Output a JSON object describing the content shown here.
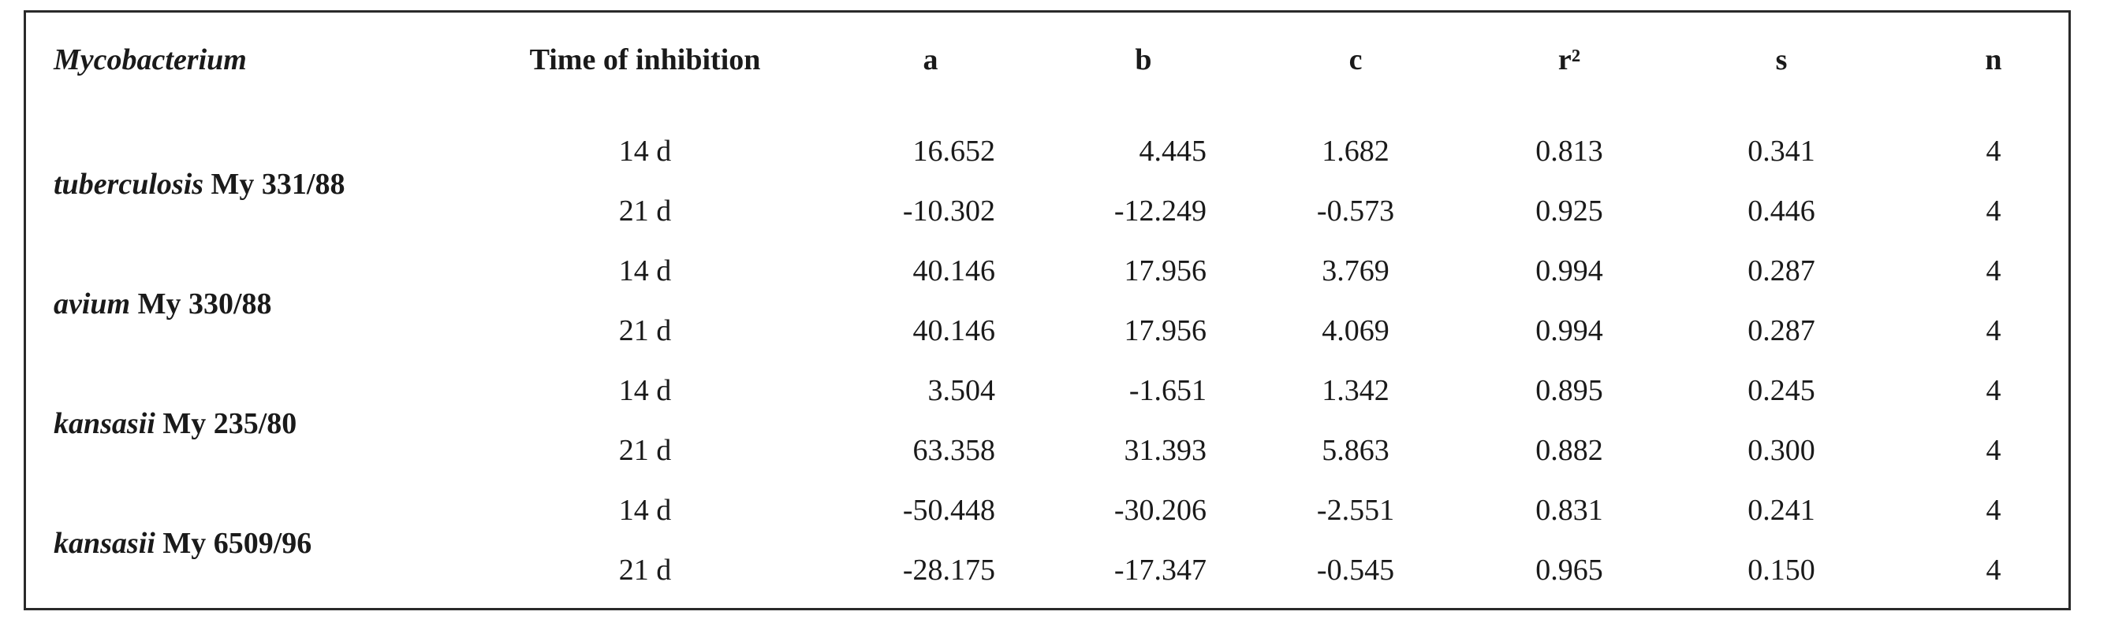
{
  "table": {
    "headers": {
      "organism": "Mycobacterium",
      "time": "Time of inhibition",
      "a": "a",
      "b": "b",
      "c": "c",
      "r2": "r²",
      "s": "s",
      "n": "n"
    },
    "groups": [
      {
        "species": "tuberculosis",
        "strain": " My 331/88",
        "rows": [
          {
            "time": "14 d",
            "a": "16.652",
            "b": "4.445",
            "c": "1.682",
            "r2": "0.813",
            "s": "0.341",
            "n": "4"
          },
          {
            "time": "21 d",
            "a": "-10.302",
            "b": "-12.249",
            "c": "-0.573",
            "r2": "0.925",
            "s": "0.446",
            "n": "4"
          }
        ]
      },
      {
        "species": "avium",
        "strain": " My 330/88",
        "rows": [
          {
            "time": "14 d",
            "a": "40.146",
            "b": "17.956",
            "c": "3.769",
            "r2": "0.994",
            "s": "0.287",
            "n": "4"
          },
          {
            "time": "21 d",
            "a": "40.146",
            "b": "17.956",
            "c": "4.069",
            "r2": "0.994",
            "s": "0.287",
            "n": "4"
          }
        ]
      },
      {
        "species": "kansasii",
        "strain": " My 235/80",
        "rows": [
          {
            "time": "14 d",
            "a": "3.504",
            "b": "-1.651",
            "c": "1.342",
            "r2": "0.895",
            "s": "0.245",
            "n": "4"
          },
          {
            "time": "21 d",
            "a": "63.358",
            "b": "31.393",
            "c": "5.863",
            "r2": "0.882",
            "s": "0.300",
            "n": "4"
          }
        ]
      },
      {
        "species": "kansasii",
        "strain": " My 6509/96",
        "rows": [
          {
            "time": "14 d",
            "a": "-50.448",
            "b": "-30.206",
            "c": "-2.551",
            "r2": "0.831",
            "s": "0.241",
            "n": "4"
          },
          {
            "time": "21 d",
            "a": "-28.175",
            "b": "-17.347",
            "c": "-0.545",
            "r2": "0.965",
            "s": "0.150",
            "n": "4"
          }
        ]
      }
    ]
  }
}
